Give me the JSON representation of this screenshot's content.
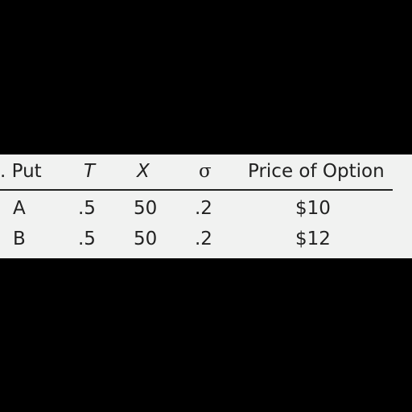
{
  "table": {
    "headers": {
      "put": ". Put",
      "t": "T",
      "x": "X",
      "sigma": "σ",
      "price": "Price of Option"
    },
    "rows": [
      {
        "put": "A",
        "t": ".5",
        "x": "50",
        "sigma": ".2",
        "price": "$10"
      },
      {
        "put": "B",
        "t": ".5",
        "x": "50",
        "sigma": ".2",
        "price": "$12"
      }
    ]
  }
}
